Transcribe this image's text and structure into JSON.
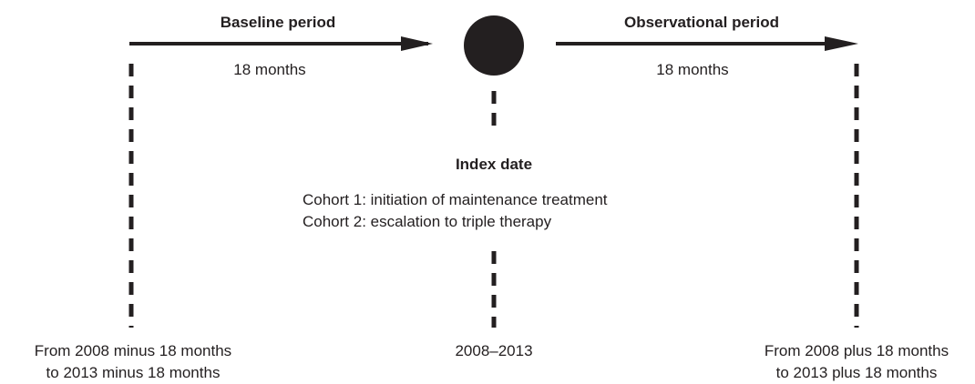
{
  "baseline": {
    "title": "Baseline period",
    "duration": "18 months",
    "range": [
      "From 2008 minus 18 months",
      "to 2013 minus 18 months"
    ]
  },
  "index": {
    "title": "Index date",
    "cohorts": [
      "Cohort 1: initiation of maintenance treatment",
      "Cohort 2: escalation to triple therapy"
    ],
    "range": "2008–2013"
  },
  "observational": {
    "title": "Observational period",
    "duration": "18 months",
    "range": [
      "From 2008 plus 18 months",
      "to 2013 plus 18 months"
    ]
  }
}
